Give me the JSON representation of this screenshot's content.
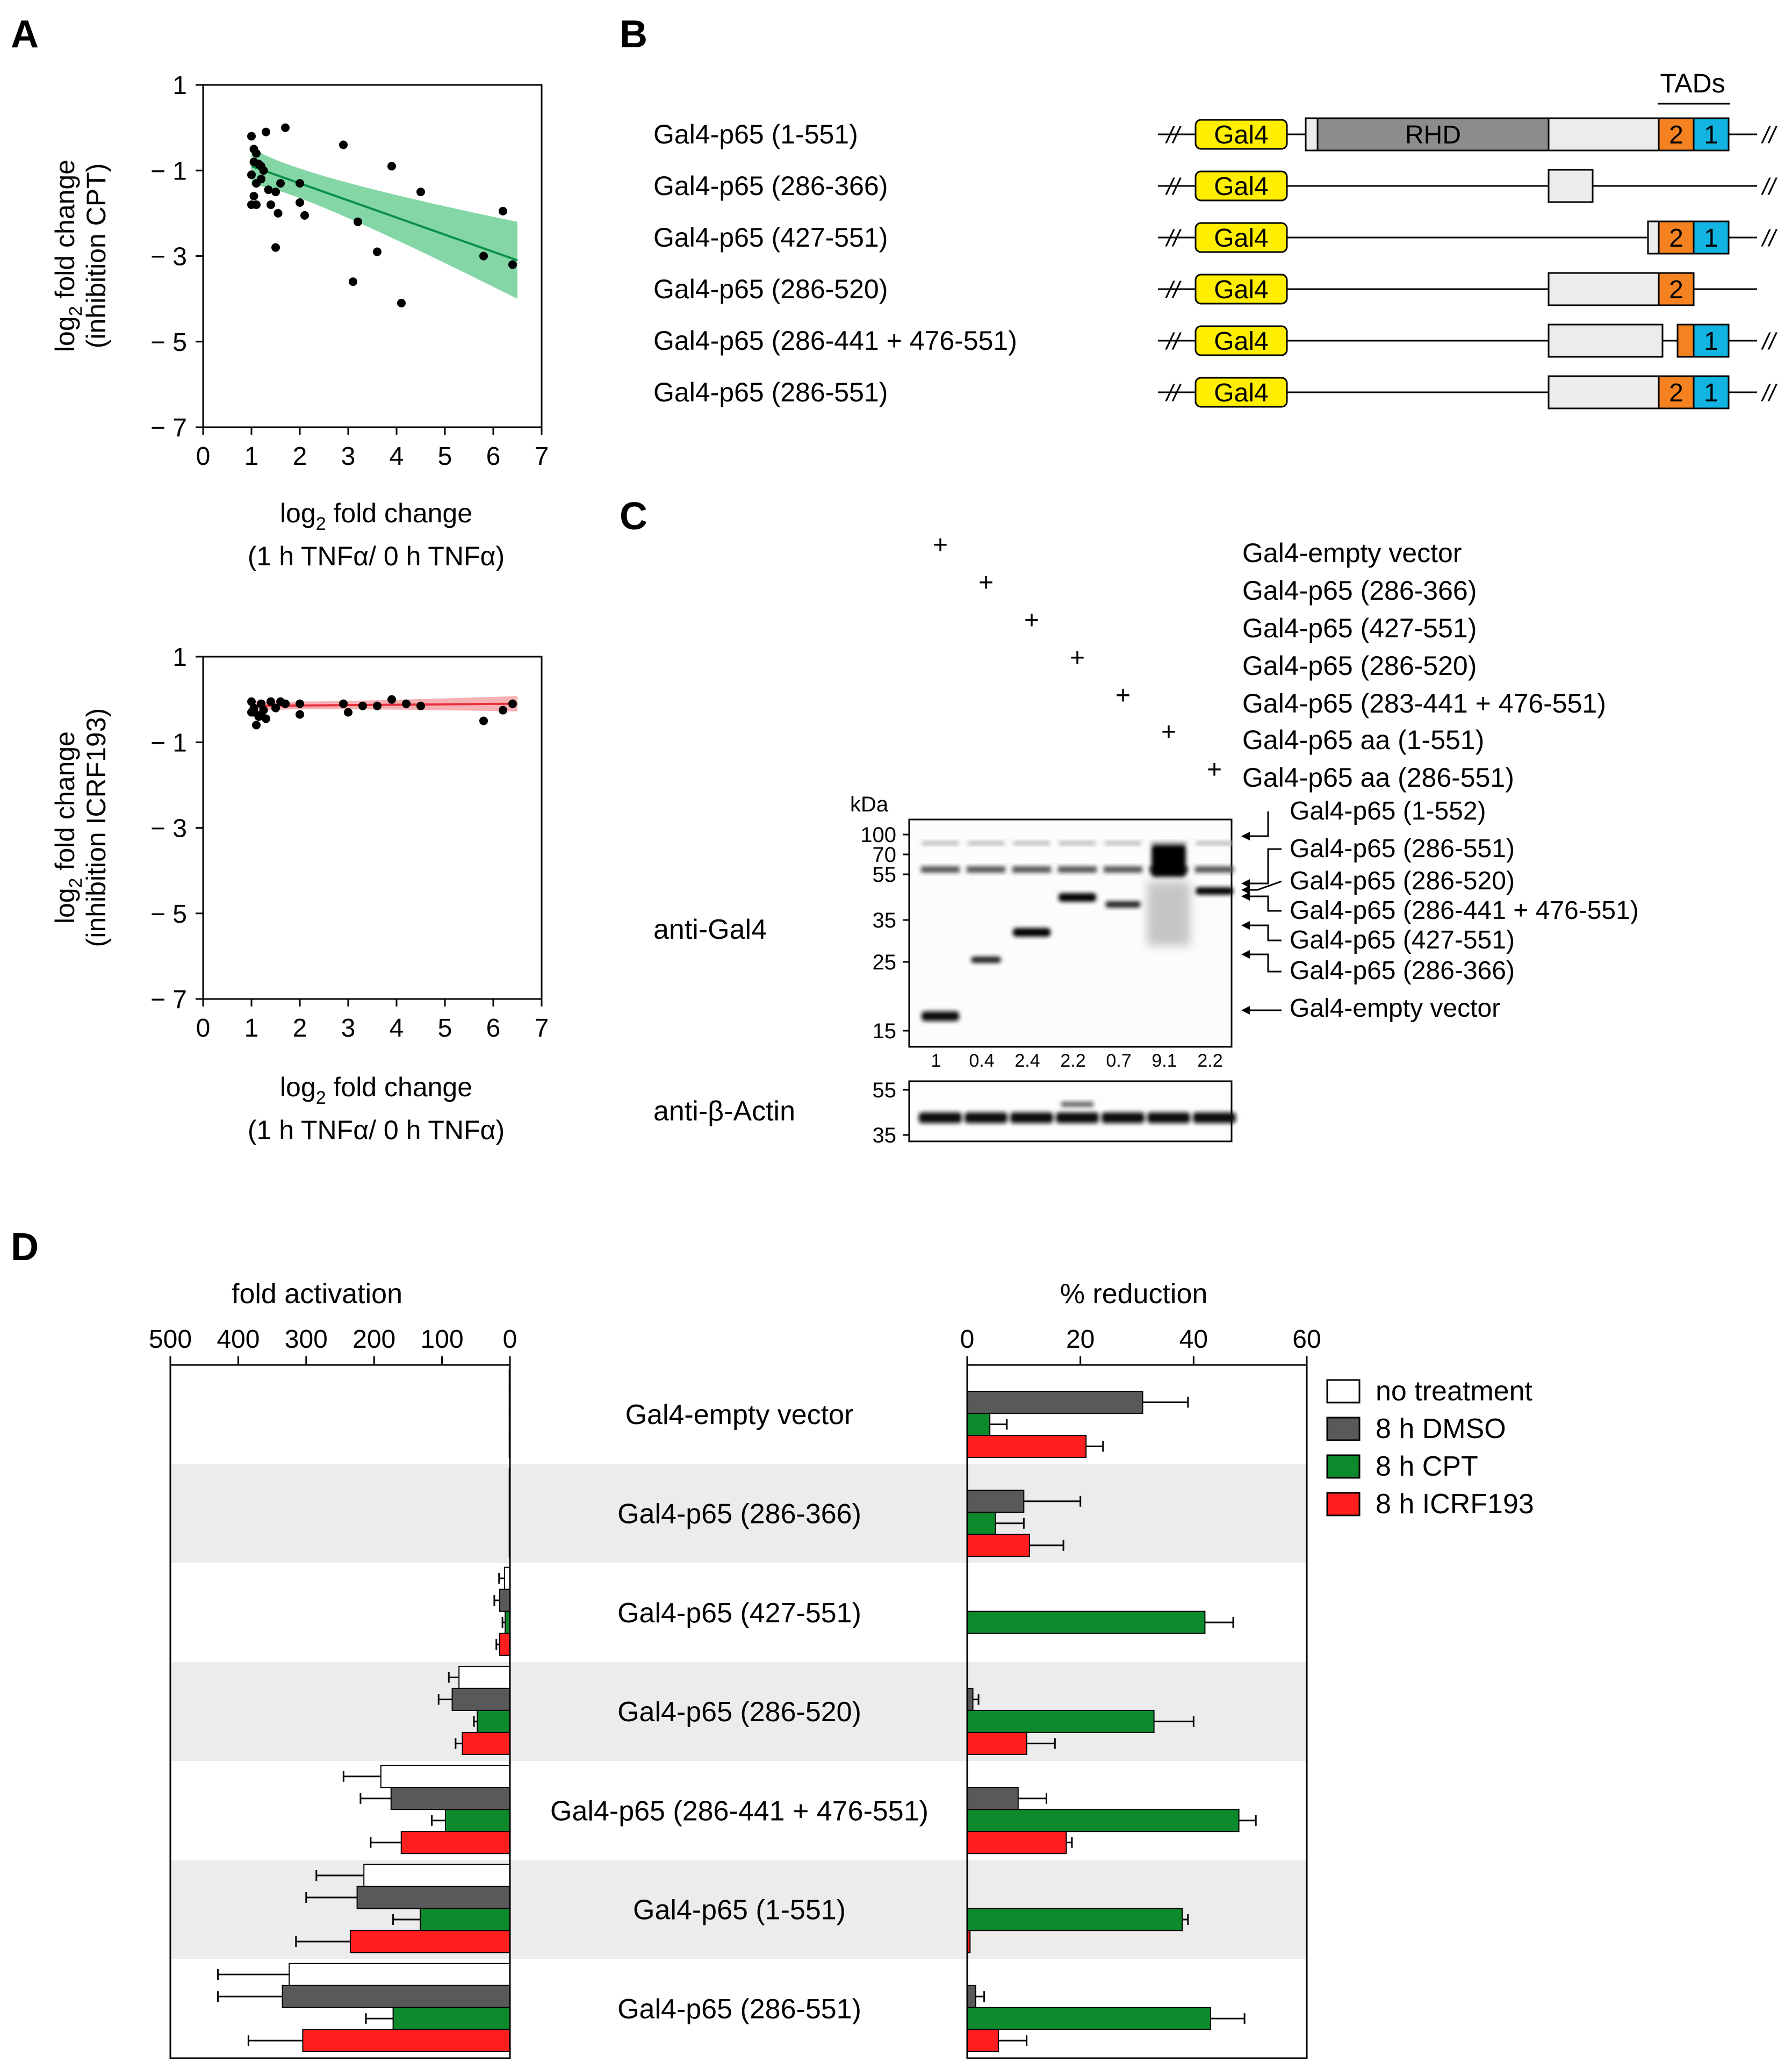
{
  "panel_labels": {
    "A": "A",
    "B": "B",
    "C": "C",
    "D": "D"
  },
  "panelA": {
    "xlabel_line1": "log",
    "xlabel_sub": "2",
    "xlabel_line1_rest": " fold change",
    "xlabel_line2": "(1 h TNFα/ 0 h TNFα)",
    "ylabel_top_line1": "log",
    "ylabel_sub": "2",
    "ylabel_top_line1_rest": " fold change",
    "ylabel_top_line2": "(inhibition CPT)",
    "ylabel_bottom_line2": "(inhibition ICRF193)",
    "xticks": [
      "0",
      "1",
      "2",
      "3",
      "4",
      "5",
      "6",
      "7"
    ],
    "yticks": [
      "1",
      "− 1",
      "− 3",
      "− 5",
      "− 7"
    ]
  },
  "panelB": {
    "tads_label": "TADs",
    "rhd_label": "RHD",
    "gal4_label": "Gal4",
    "tad2": "2",
    "tad1": "1",
    "constructs": [
      "Gal4-p65 (1-551)",
      "Gal4-p65 (286-366)",
      "Gal4-p65 (427-551)",
      "Gal4-p65 (286-520)",
      "Gal4-p65 (286-441 + 476-551)",
      "Gal4-p65 (286-551)"
    ],
    "break_glyph": "//"
  },
  "panelC": {
    "plus": "+",
    "lane_labels": [
      "Gal4-empty vector",
      "Gal4-p65 (286-366)",
      "Gal4-p65 (427-551)",
      "Gal4-p65 (286-520)",
      "Gal4-p65 (283-441 + 476-551)",
      "Gal4-p65 aa (1-551)",
      "Gal4-p65 aa (286-551)"
    ],
    "kda": "kDa",
    "markers": [
      "100",
      "70",
      "55",
      "35",
      "25",
      "15"
    ],
    "actin_markers": [
      "55",
      "35"
    ],
    "quant": [
      "1",
      "0.4",
      "2.4",
      "2.2",
      "0.7",
      "9.1",
      "2.2"
    ],
    "band_labels": [
      "Gal4-p65 (1-552)",
      "Gal4-p65 (286-551)",
      "Gal4-p65 (286-520)",
      "Gal4-p65 (286-441 + 476-551)",
      "Gal4-p65 (427-551)",
      "Gal4-p65 (286-366)",
      "Gal4-empty vector"
    ],
    "anti_gal4": "anti-Gal4",
    "anti_actin": "anti-β-Actin"
  },
  "panelD": {
    "fold_title": "fold activation",
    "reduction_title": "% reduction",
    "fold_ticks": [
      "500",
      "400",
      "300",
      "200",
      "100",
      "0"
    ],
    "red_ticks": [
      "0",
      "20",
      "40",
      "60"
    ],
    "rows": [
      "Gal4-empty vector",
      "Gal4-p65 (286-366)",
      "Gal4-p65 (427-551)",
      "Gal4-p65 (286-520)",
      "Gal4-p65 (286-441 + 476-551)",
      "Gal4-p65 (1-551)",
      "Gal4-p65 (286-551)"
    ],
    "legend": [
      "no treatment",
      "8 h DMSO",
      "8 h CPT",
      "8 h ICRF193"
    ]
  },
  "colors": {
    "gal4": "#ffee00",
    "rhd": "#8c8c8c",
    "tad2": "#f58220",
    "tad1": "#12b4e2",
    "light": "#ececec",
    "green_line": "#0a8f47",
    "green_band": "#6fcf97",
    "red_line": "#e8303a",
    "red_band": "#f5a3a8",
    "white_bar": "#ffffff",
    "dmso": "#595959",
    "cpt": "#0d8a2b",
    "icrf": "#ff1f1f",
    "row_shade": "#ececec"
  },
  "chart_data": [
    {
      "type": "scatter",
      "title": "",
      "xlabel": "log2 fold change (1 h TNFα/ 0 h TNFα)",
      "ylabel": "log2 fold change (inhibition CPT)",
      "xlim": [
        0,
        7
      ],
      "ylim": [
        -7,
        1
      ],
      "fit": {
        "x0": 1.0,
        "y0": -0.9,
        "x1": 6.5,
        "y1": -3.1
      },
      "points": [
        [
          1.0,
          -0.2
        ],
        [
          1.05,
          -0.5
        ],
        [
          1.1,
          -0.6
        ],
        [
          1.05,
          -0.8
        ],
        [
          1.15,
          -0.85
        ],
        [
          1.0,
          -1.1
        ],
        [
          1.1,
          -1.3
        ],
        [
          1.05,
          -1.6
        ],
        [
          1.1,
          -1.8
        ],
        [
          1.0,
          -1.8
        ],
        [
          1.2,
          -1.2
        ],
        [
          1.25,
          -1.0
        ],
        [
          1.3,
          -0.1
        ],
        [
          1.35,
          -1.45
        ],
        [
          1.4,
          -1.8
        ],
        [
          1.5,
          -1.5
        ],
        [
          1.55,
          -2.0
        ],
        [
          1.6,
          -1.3
        ],
        [
          1.7,
          0.0
        ],
        [
          1.5,
          -2.8
        ],
        [
          2.0,
          -1.3
        ],
        [
          2.0,
          -1.75
        ],
        [
          2.1,
          -2.05
        ],
        [
          2.9,
          -0.4
        ],
        [
          3.1,
          -3.6
        ],
        [
          3.2,
          -2.2
        ],
        [
          3.6,
          -2.9
        ],
        [
          3.9,
          -0.9
        ],
        [
          4.1,
          -4.1
        ],
        [
          4.5,
          -1.5
        ],
        [
          5.8,
          -3.0
        ],
        [
          6.2,
          -1.95
        ],
        [
          6.4,
          -3.2
        ],
        [
          1.2,
          -0.9
        ]
      ]
    },
    {
      "type": "scatter",
      "title": "",
      "xlabel": "log2 fold change (1 h TNFα/ 0 h TNFα)",
      "ylabel": "log2 fold change (inhibition ICRF193)",
      "xlim": [
        0,
        7
      ],
      "ylim": [
        -7,
        1
      ],
      "fit": {
        "x0": 1.0,
        "y0": -0.15,
        "x1": 6.5,
        "y1": -0.1
      },
      "points": [
        [
          1.0,
          -0.05
        ],
        [
          1.05,
          -0.3
        ],
        [
          1.1,
          -0.6
        ],
        [
          1.05,
          -0.2
        ],
        [
          1.15,
          -0.4
        ],
        [
          1.2,
          -0.1
        ],
        [
          1.25,
          -0.25
        ],
        [
          1.3,
          -0.45
        ],
        [
          1.4,
          -0.05
        ],
        [
          1.5,
          -0.2
        ],
        [
          1.6,
          -0.05
        ],
        [
          1.2,
          -0.35
        ],
        [
          1.0,
          -0.3
        ],
        [
          2.0,
          -0.35
        ],
        [
          2.0,
          -0.1
        ],
        [
          2.9,
          -0.1
        ],
        [
          3.0,
          -0.3
        ],
        [
          3.3,
          -0.15
        ],
        [
          3.6,
          -0.15
        ],
        [
          3.9,
          0.0
        ],
        [
          4.2,
          -0.1
        ],
        [
          4.5,
          -0.15
        ],
        [
          5.8,
          -0.5
        ],
        [
          6.2,
          -0.25
        ],
        [
          6.4,
          -0.1
        ],
        [
          1.7,
          -0.1
        ]
      ]
    },
    {
      "type": "bar",
      "title": "fold activation",
      "categories": [
        "Gal4-empty vector",
        "Gal4-p65 (286-366)",
        "Gal4-p65 (427-551)",
        "Gal4-p65 (286-520)",
        "Gal4-p65 (286-441 + 476-551)",
        "Gal4-p65 (1-551)",
        "Gal4-p65 (286-551)"
      ],
      "xlim": [
        500,
        0
      ],
      "series": [
        {
          "name": "no treatment",
          "values": [
            1,
            1,
            8,
            75,
            190,
            215,
            325
          ],
          "err": [
            1,
            1,
            8,
            15,
            55,
            70,
            105
          ]
        },
        {
          "name": "8 h DMSO",
          "values": [
            1,
            1,
            15,
            85,
            175,
            225,
            335
          ],
          "err": [
            1,
            1,
            8,
            20,
            45,
            75,
            95
          ]
        },
        {
          "name": "8 h CPT",
          "values": [
            1,
            1,
            7,
            48,
            95,
            132,
            172
          ],
          "err": [
            1,
            1,
            4,
            5,
            20,
            40,
            40
          ]
        },
        {
          "name": "8 h ICRF193",
          "values": [
            1,
            1,
            15,
            70,
            160,
            235,
            305
          ],
          "err": [
            1,
            1,
            5,
            10,
            45,
            80,
            80
          ]
        }
      ]
    },
    {
      "type": "bar",
      "title": "% reduction",
      "categories": [
        "Gal4-empty vector",
        "Gal4-p65 (286-366)",
        "Gal4-p65 (427-551)",
        "Gal4-p65 (286-520)",
        "Gal4-p65 (286-441 + 476-551)",
        "Gal4-p65 (1-551)",
        "Gal4-p65 (286-551)"
      ],
      "xlim": [
        0,
        60
      ],
      "series": [
        {
          "name": "no treatment",
          "values": [
            0,
            0,
            0,
            0,
            0,
            0,
            0
          ],
          "err": [
            0,
            0,
            0,
            0,
            0,
            0,
            0
          ]
        },
        {
          "name": "8 h DMSO",
          "values": [
            31,
            10,
            0,
            1,
            9,
            0,
            1.5
          ],
          "err": [
            8,
            10,
            0,
            1,
            5,
            0,
            1.5
          ]
        },
        {
          "name": "8 h CPT",
          "values": [
            4,
            5,
            42,
            33,
            48,
            38,
            43
          ],
          "err": [
            3,
            5,
            5,
            7,
            3,
            1,
            6
          ]
        },
        {
          "name": "8 h ICRF193",
          "values": [
            21,
            11,
            0,
            10.5,
            17.5,
            0.5,
            5.5
          ],
          "err": [
            3,
            6,
            0,
            5,
            1,
            0,
            5
          ]
        }
      ]
    }
  ]
}
